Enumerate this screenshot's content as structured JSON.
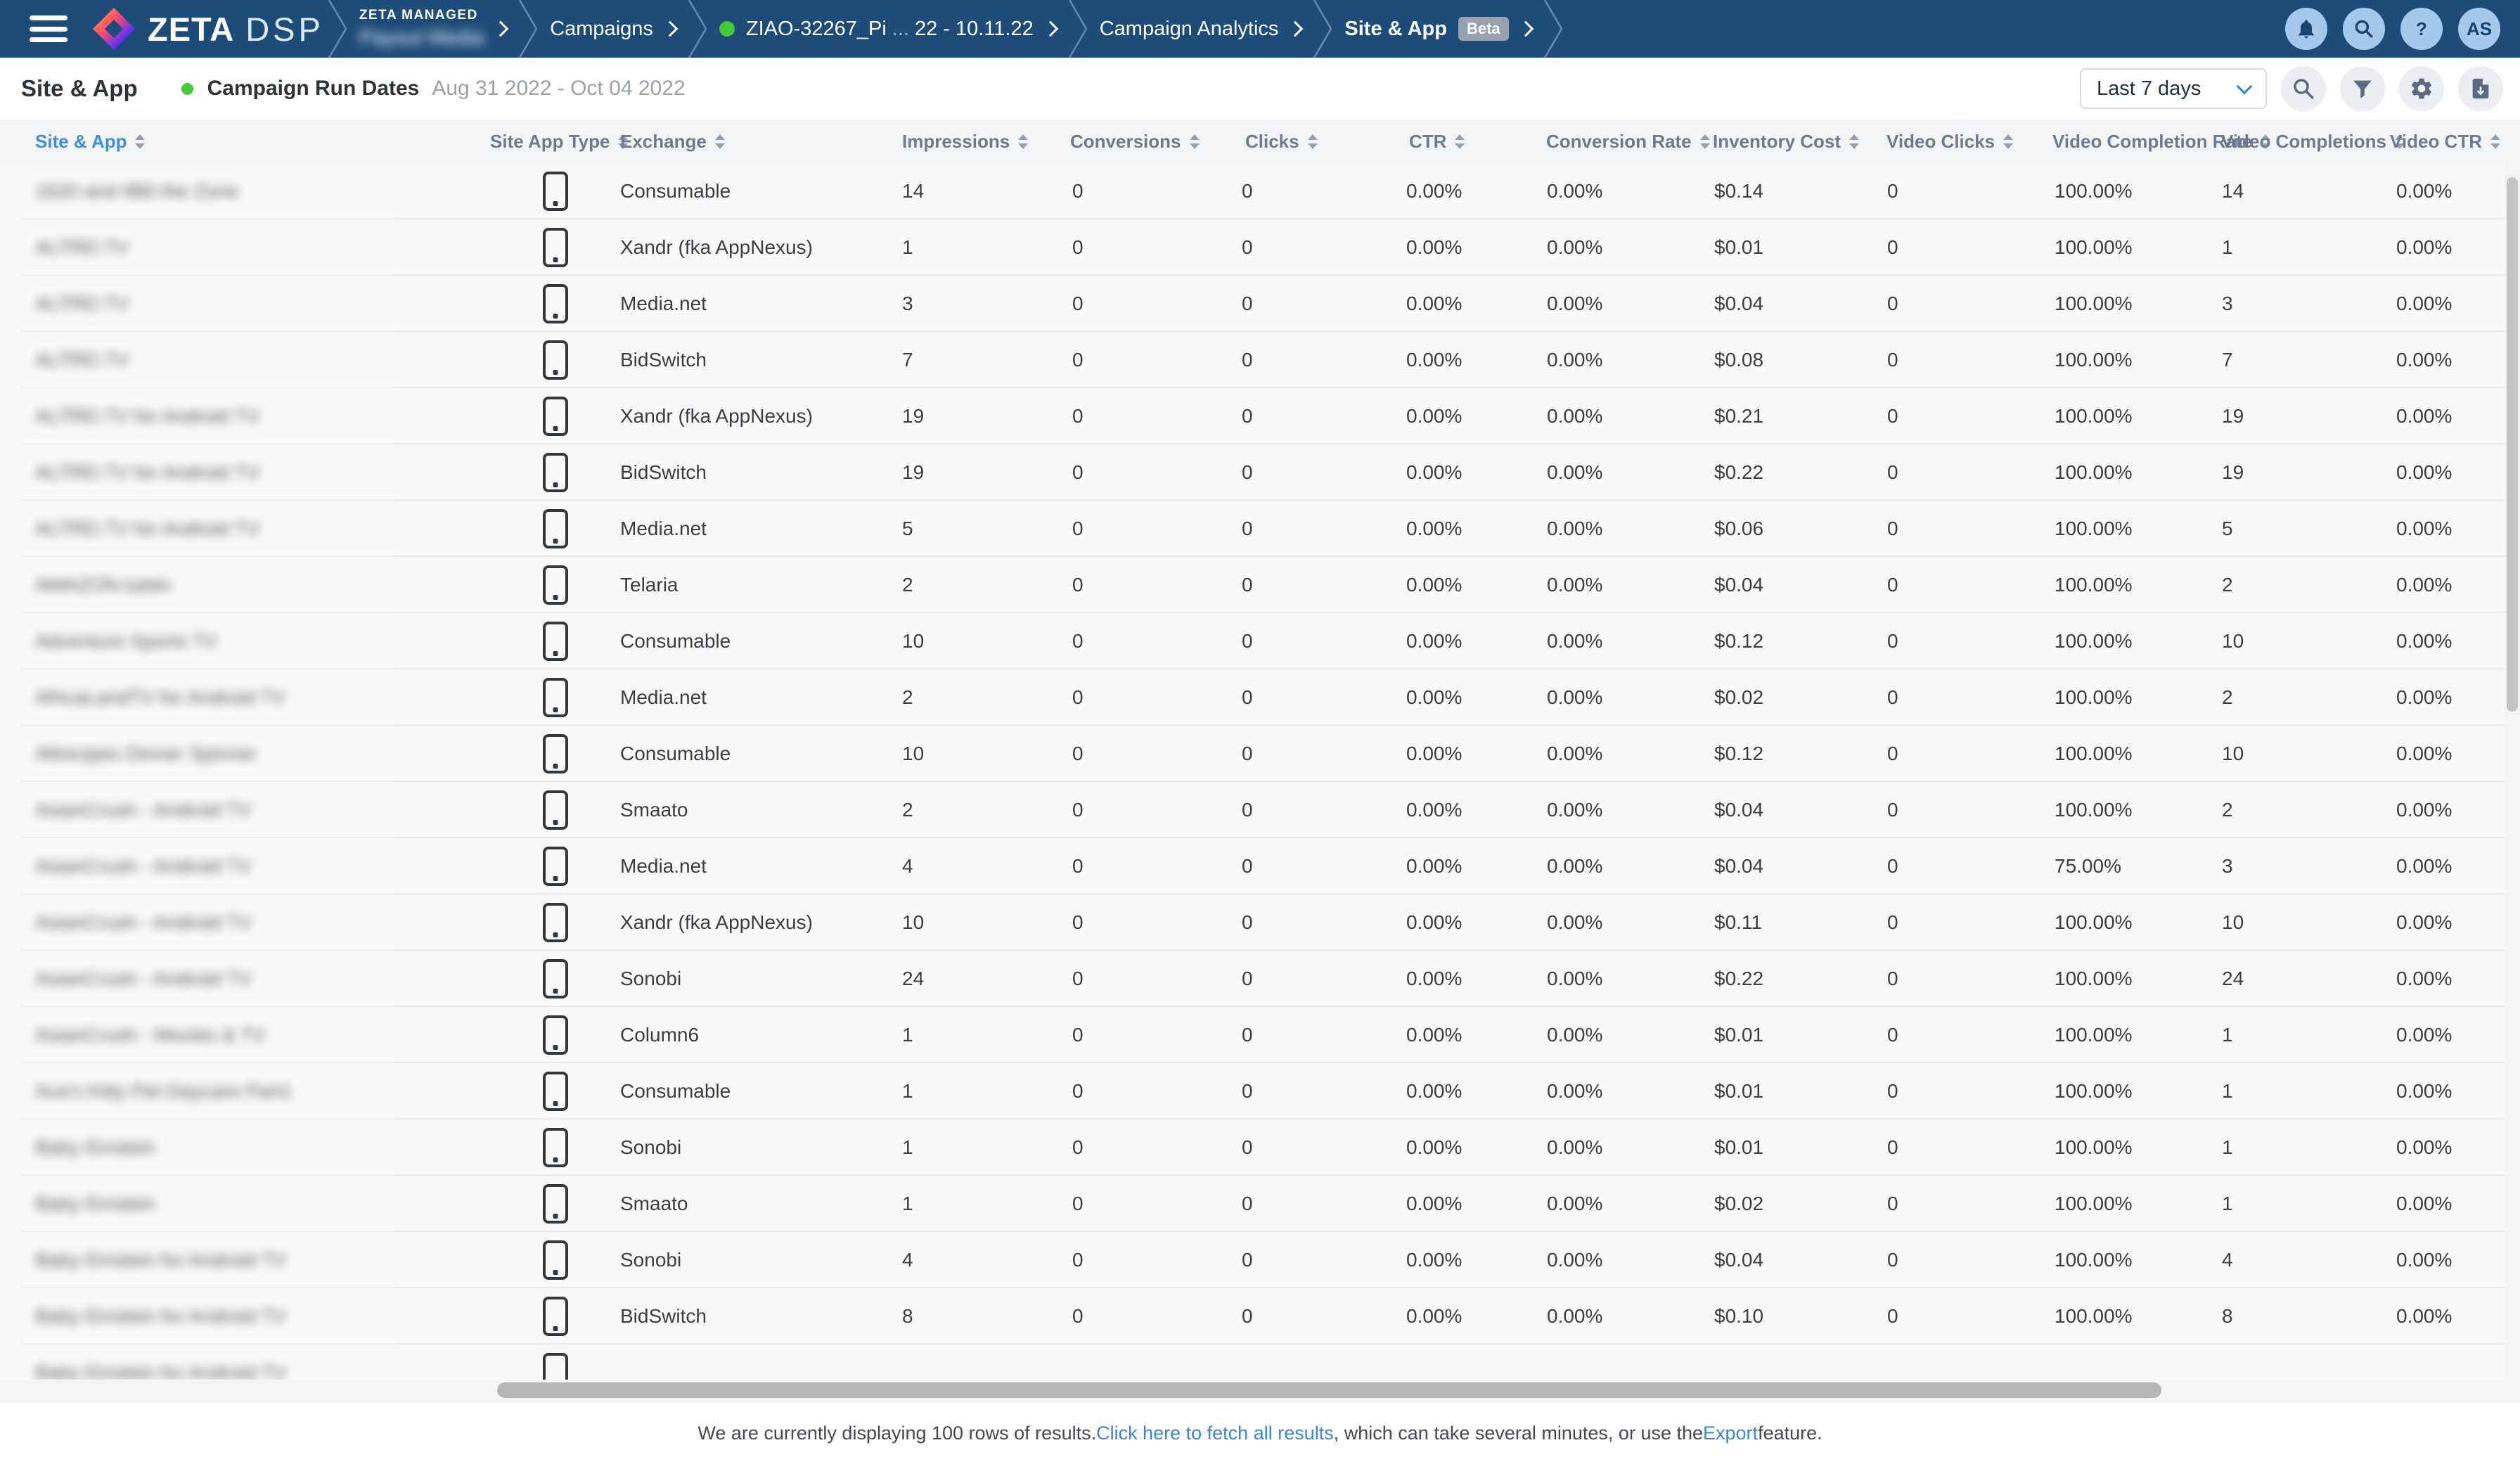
{
  "colors": {
    "nav_background": "#1e4c79",
    "accent_blue": "#3d8edb",
    "status_green": "#43cb37",
    "link_blue": "#3a87d4",
    "nav_icon_circle": "#a6c8ea",
    "toolbar_icon_circle": "#eceef1"
  },
  "nav": {
    "brand_primary": "ZETA",
    "brand_secondary": "DSP",
    "managed_label": "ZETA MANAGED",
    "managed_account": "Payout Media",
    "crumb_campaigns": "Campaigns",
    "campaign_prefix": "ZIAO-32267_Pi",
    "campaign_ellipsis": "...",
    "campaign_suffix": "22 - 10.11.22",
    "crumb_analytics": "Campaign Analytics",
    "crumb_site_app": "Site & App",
    "beta_badge": "Beta",
    "help_glyph": "?",
    "avatar_initials": "AS"
  },
  "toolbar": {
    "title": "Site & App",
    "run_dates_label": "Campaign Run Dates",
    "run_dates_value": "Aug 31 2022 - Oct 04 2022",
    "date_range_value": "Last 7 days"
  },
  "table": {
    "columns": [
      {
        "id": "site_app",
        "label": "Site & App",
        "sorted": true
      },
      {
        "id": "site_app_type",
        "label": "Site App Type",
        "sorted": false
      },
      {
        "id": "exchange",
        "label": "Exchange",
        "sorted": false
      },
      {
        "id": "impressions",
        "label": "Impressions",
        "sorted": false
      },
      {
        "id": "conversions",
        "label": "Conversions",
        "sorted": false
      },
      {
        "id": "clicks",
        "label": "Clicks",
        "sorted": false
      },
      {
        "id": "ctr",
        "label": "CTR",
        "sorted": false
      },
      {
        "id": "conversion_rate",
        "label": "Conversion Rate",
        "sorted": false
      },
      {
        "id": "inventory_cost",
        "label": "Inventory Cost",
        "sorted": false
      },
      {
        "id": "video_clicks",
        "label": "Video Clicks",
        "sorted": false
      },
      {
        "id": "video_completion_rate",
        "label": "Video Completion Rate",
        "sorted": false
      },
      {
        "id": "video_completions",
        "label": "Video Completions",
        "sorted": false
      },
      {
        "id": "video_ctr",
        "label": "Video CTR",
        "sorted": false
      }
    ],
    "rows": [
      {
        "site_app": "1620 and 980 the Zone",
        "exchange": "Consumable",
        "impressions": "14",
        "conversions": "0",
        "clicks": "0",
        "ctr": "0.00%",
        "conversion_rate": "0.00%",
        "inventory_cost": "$0.14",
        "video_clicks": "0",
        "video_completion_rate": "100.00%",
        "video_completions": "14",
        "video_ctr": "0.00%"
      },
      {
        "site_app": "ALTRD.TV",
        "exchange": "Xandr (fka AppNexus)",
        "impressions": "1",
        "conversions": "0",
        "clicks": "0",
        "ctr": "0.00%",
        "conversion_rate": "0.00%",
        "inventory_cost": "$0.01",
        "video_clicks": "0",
        "video_completion_rate": "100.00%",
        "video_completions": "1",
        "video_ctr": "0.00%"
      },
      {
        "site_app": "ALTRD.TV",
        "exchange": "Media.net",
        "impressions": "3",
        "conversions": "0",
        "clicks": "0",
        "ctr": "0.00%",
        "conversion_rate": "0.00%",
        "inventory_cost": "$0.04",
        "video_clicks": "0",
        "video_completion_rate": "100.00%",
        "video_completions": "3",
        "video_ctr": "0.00%"
      },
      {
        "site_app": "ALTRD.TV",
        "exchange": "BidSwitch",
        "impressions": "7",
        "conversions": "0",
        "clicks": "0",
        "ctr": "0.00%",
        "conversion_rate": "0.00%",
        "inventory_cost": "$0.08",
        "video_clicks": "0",
        "video_completion_rate": "100.00%",
        "video_completions": "7",
        "video_ctr": "0.00%"
      },
      {
        "site_app": "ALTRD.TV for Android TV",
        "exchange": "Xandr (fka AppNexus)",
        "impressions": "19",
        "conversions": "0",
        "clicks": "0",
        "ctr": "0.00%",
        "conversion_rate": "0.00%",
        "inventory_cost": "$0.21",
        "video_clicks": "0",
        "video_completion_rate": "100.00%",
        "video_completions": "19",
        "video_ctr": "0.00%"
      },
      {
        "site_app": "ALTRD.TV for Android TV",
        "exchange": "BidSwitch",
        "impressions": "19",
        "conversions": "0",
        "clicks": "0",
        "ctr": "0.00%",
        "conversion_rate": "0.00%",
        "inventory_cost": "$0.22",
        "video_clicks": "0",
        "video_completion_rate": "100.00%",
        "video_completions": "19",
        "video_ctr": "0.00%"
      },
      {
        "site_app": "ALTRD.TV for Android TV",
        "exchange": "Media.net",
        "impressions": "5",
        "conversions": "0",
        "clicks": "0",
        "ctr": "0.00%",
        "conversion_rate": "0.00%",
        "inventory_cost": "$0.06",
        "video_clicks": "0",
        "video_completion_rate": "100.00%",
        "video_completions": "5",
        "video_ctr": "0.00%"
      },
      {
        "site_app": "AMAZON.tubitv",
        "exchange": "Telaria",
        "impressions": "2",
        "conversions": "0",
        "clicks": "0",
        "ctr": "0.00%",
        "conversion_rate": "0.00%",
        "inventory_cost": "$0.04",
        "video_clicks": "0",
        "video_completion_rate": "100.00%",
        "video_completions": "2",
        "video_ctr": "0.00%"
      },
      {
        "site_app": "Adventure Sports TV",
        "exchange": "Consumable",
        "impressions": "10",
        "conversions": "0",
        "clicks": "0",
        "ctr": "0.00%",
        "conversion_rate": "0.00%",
        "inventory_cost": "$0.12",
        "video_clicks": "0",
        "video_completion_rate": "100.00%",
        "video_completions": "10",
        "video_ctr": "0.00%"
      },
      {
        "site_app": "AfricaLandTV for Android TV",
        "exchange": "Media.net",
        "impressions": "2",
        "conversions": "0",
        "clicks": "0",
        "ctr": "0.00%",
        "conversion_rate": "0.00%",
        "inventory_cost": "$0.02",
        "video_clicks": "0",
        "video_completion_rate": "100.00%",
        "video_completions": "2",
        "video_ctr": "0.00%"
      },
      {
        "site_app": "Allrecipes Dinner Spinner",
        "exchange": "Consumable",
        "impressions": "10",
        "conversions": "0",
        "clicks": "0",
        "ctr": "0.00%",
        "conversion_rate": "0.00%",
        "inventory_cost": "$0.12",
        "video_clicks": "0",
        "video_completion_rate": "100.00%",
        "video_completions": "10",
        "video_ctr": "0.00%"
      },
      {
        "site_app": "AsianCrush - Android TV",
        "exchange": "Smaato",
        "impressions": "2",
        "conversions": "0",
        "clicks": "0",
        "ctr": "0.00%",
        "conversion_rate": "0.00%",
        "inventory_cost": "$0.04",
        "video_clicks": "0",
        "video_completion_rate": "100.00%",
        "video_completions": "2",
        "video_ctr": "0.00%"
      },
      {
        "site_app": "AsianCrush - Android TV",
        "exchange": "Media.net",
        "impressions": "4",
        "conversions": "0",
        "clicks": "0",
        "ctr": "0.00%",
        "conversion_rate": "0.00%",
        "inventory_cost": "$0.04",
        "video_clicks": "0",
        "video_completion_rate": "75.00%",
        "video_completions": "3",
        "video_ctr": "0.00%"
      },
      {
        "site_app": "AsianCrush - Android TV",
        "exchange": "Xandr (fka AppNexus)",
        "impressions": "10",
        "conversions": "0",
        "clicks": "0",
        "ctr": "0.00%",
        "conversion_rate": "0.00%",
        "inventory_cost": "$0.11",
        "video_clicks": "0",
        "video_completion_rate": "100.00%",
        "video_completions": "10",
        "video_ctr": "0.00%"
      },
      {
        "site_app": "AsianCrush - Android TV",
        "exchange": "Sonobi",
        "impressions": "24",
        "conversions": "0",
        "clicks": "0",
        "ctr": "0.00%",
        "conversion_rate": "0.00%",
        "inventory_cost": "$0.22",
        "video_clicks": "0",
        "video_completion_rate": "100.00%",
        "video_completions": "24",
        "video_ctr": "0.00%"
      },
      {
        "site_app": "AsianCrush - Movies & TV",
        "exchange": "Column6",
        "impressions": "1",
        "conversions": "0",
        "clicks": "0",
        "ctr": "0.00%",
        "conversion_rate": "0.00%",
        "inventory_cost": "$0.01",
        "video_clicks": "0",
        "video_completion_rate": "100.00%",
        "video_completions": "1",
        "video_ctr": "0.00%"
      },
      {
        "site_app": "Ava's Kitty Pet Daycare Part1",
        "exchange": "Consumable",
        "impressions": "1",
        "conversions": "0",
        "clicks": "0",
        "ctr": "0.00%",
        "conversion_rate": "0.00%",
        "inventory_cost": "$0.01",
        "video_clicks": "0",
        "video_completion_rate": "100.00%",
        "video_completions": "1",
        "video_ctr": "0.00%"
      },
      {
        "site_app": "Baby Einstein",
        "exchange": "Sonobi",
        "impressions": "1",
        "conversions": "0",
        "clicks": "0",
        "ctr": "0.00%",
        "conversion_rate": "0.00%",
        "inventory_cost": "$0.01",
        "video_clicks": "0",
        "video_completion_rate": "100.00%",
        "video_completions": "1",
        "video_ctr": "0.00%"
      },
      {
        "site_app": "Baby Einstein",
        "exchange": "Smaato",
        "impressions": "1",
        "conversions": "0",
        "clicks": "0",
        "ctr": "0.00%",
        "conversion_rate": "0.00%",
        "inventory_cost": "$0.02",
        "video_clicks": "0",
        "video_completion_rate": "100.00%",
        "video_completions": "1",
        "video_ctr": "0.00%"
      },
      {
        "site_app": "Baby Einstein for Android TV",
        "exchange": "Sonobi",
        "impressions": "4",
        "conversions": "0",
        "clicks": "0",
        "ctr": "0.00%",
        "conversion_rate": "0.00%",
        "inventory_cost": "$0.04",
        "video_clicks": "0",
        "video_completion_rate": "100.00%",
        "video_completions": "4",
        "video_ctr": "0.00%"
      },
      {
        "site_app": "Baby Einstein for Android TV",
        "exchange": "BidSwitch",
        "impressions": "8",
        "conversions": "0",
        "clicks": "0",
        "ctr": "0.00%",
        "conversion_rate": "0.00%",
        "inventory_cost": "$0.10",
        "video_clicks": "0",
        "video_completion_rate": "100.00%",
        "video_completions": "8",
        "video_ctr": "0.00%"
      },
      {
        "site_app": "Baby Einstein for Android TV",
        "exchange": "",
        "impressions": "",
        "conversions": "",
        "clicks": "",
        "ctr": "",
        "conversion_rate": "",
        "inventory_cost": "",
        "video_clicks": "",
        "video_completion_rate": "",
        "video_completions": "",
        "video_ctr": ""
      }
    ]
  },
  "footer": {
    "text_1": "We are currently displaying 100 rows of results. ",
    "link_1": "Click here to fetch all results",
    "text_2": ", which can take several minutes, or use the ",
    "link_2": "Export",
    "text_3": " feature."
  }
}
